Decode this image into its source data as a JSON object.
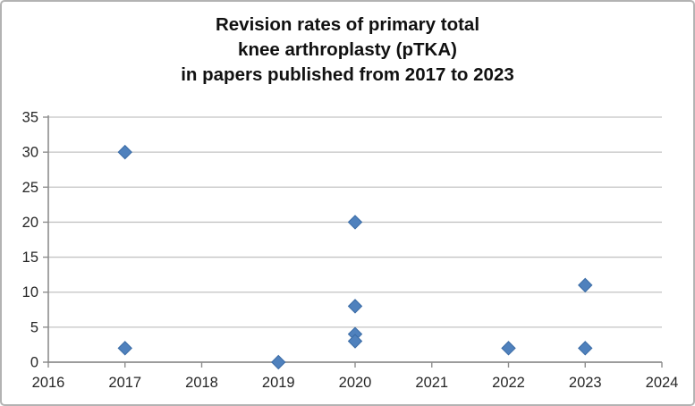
{
  "chart_data": {
    "type": "scatter",
    "title": "Revision rates of primary total knee arthroplasty (pTKA) in papers published from 2017 to 2023",
    "title_lines": [
      "Revision rates of primary total",
      "knee arthroplasty (pTKA)",
      "in papers published from 2017 to 2023"
    ],
    "points": [
      {
        "x": 2017,
        "y": 30
      },
      {
        "x": 2017,
        "y": 2
      },
      {
        "x": 2019,
        "y": 0
      },
      {
        "x": 2020,
        "y": 20
      },
      {
        "x": 2020,
        "y": 8
      },
      {
        "x": 2020,
        "y": 4
      },
      {
        "x": 2020,
        "y": 3
      },
      {
        "x": 2022,
        "y": 2
      },
      {
        "x": 2023,
        "y": 11
      },
      {
        "x": 2023,
        "y": 2
      }
    ],
    "xlabel": "",
    "ylabel": "",
    "xlim": [
      2016,
      2024
    ],
    "ylim": [
      0,
      35
    ],
    "x_ticks": [
      2016,
      2017,
      2018,
      2019,
      2020,
      2021,
      2022,
      2023,
      2024
    ],
    "y_ticks": [
      0,
      5,
      10,
      15,
      20,
      25,
      30,
      35
    ],
    "grid": "horizontal",
    "legend": "none",
    "marker": {
      "shape": "diamond",
      "size": 7.5,
      "fill": "#4F81BD",
      "stroke": "#3A6BA5"
    },
    "colors": {
      "gridline": "#c3c3c3",
      "axis": "#8e8e8e",
      "tick_text": "#262626",
      "title_text": "#111111",
      "background": "#ffffff"
    }
  }
}
